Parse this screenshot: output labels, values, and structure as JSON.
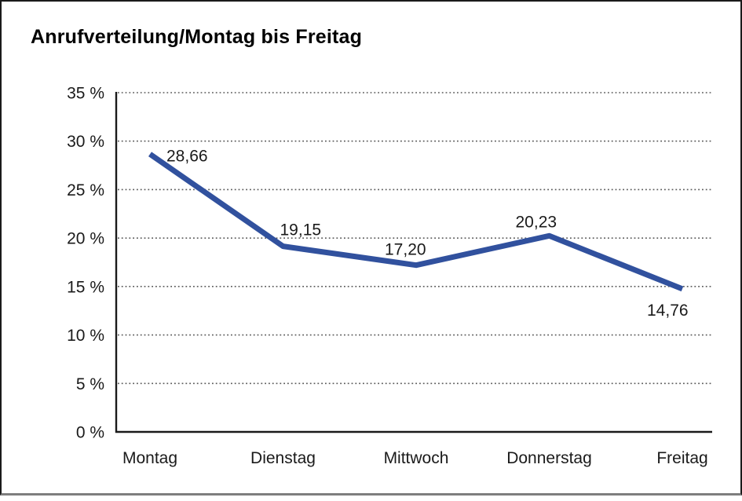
{
  "title": "Anrufverteilung/Montag bis Freitag",
  "chart_data": {
    "type": "line",
    "title": "Anrufverteilung/Montag bis Freitag",
    "categories": [
      "Montag",
      "Dienstag",
      "Mittwoch",
      "Donnerstag",
      "Freitag"
    ],
    "values": [
      28.66,
      19.15,
      17.2,
      20.23,
      14.76
    ],
    "data_labels": [
      "28,66",
      "19,15",
      "17,20",
      "20,23",
      "14,76"
    ],
    "series_name": "Anrufverteilung",
    "xlabel": "",
    "ylabel": "",
    "ylim": [
      0,
      35
    ],
    "ytick_step": 5,
    "ytick_labels": [
      "0 %",
      "5 %",
      "10 %",
      "15 %",
      "20 %",
      "25 %",
      "30 %",
      "35 %"
    ],
    "grid": "horizontal-dotted",
    "legend": "none",
    "colors": {
      "line": "#31519E",
      "axis": "#1a1a1a",
      "gridline": "#5a5a5a",
      "text": "#1a1a1a",
      "background": "#ffffff"
    }
  }
}
